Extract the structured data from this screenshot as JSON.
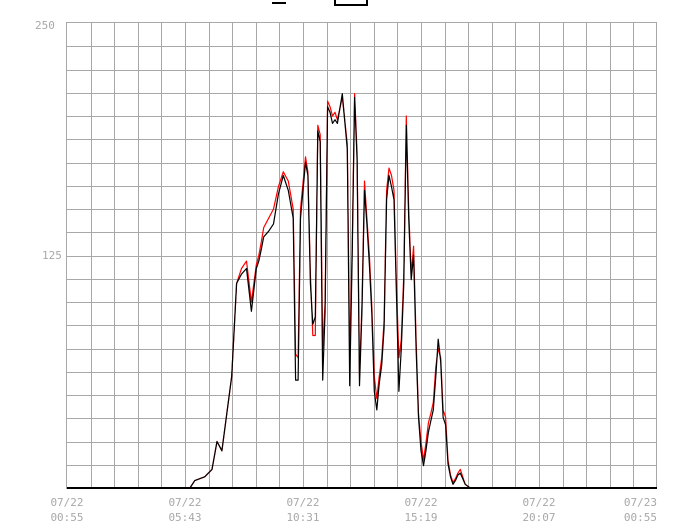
{
  "chart_data": {
    "type": "line",
    "x_ticks": [
      {
        "date": "07/22",
        "time": "00:55"
      },
      {
        "date": "07/22",
        "time": "05:43"
      },
      {
        "date": "07/22",
        "time": "10:31"
      },
      {
        "date": "07/22",
        "time": "15:19"
      },
      {
        "date": "07/22",
        "time": "20:07"
      },
      {
        "date": "07/23",
        "time": "00:55"
      }
    ],
    "y_ticks": [
      0,
      125,
      250
    ],
    "y_tick_labels_shown": [
      "125",
      "250"
    ],
    "ylim": [
      0,
      250
    ],
    "xlim_hours": [
      0,
      24
    ],
    "grid": true,
    "series": [
      {
        "color": "#ff0000",
        "x": [
          0,
          5,
          5.2,
          5.6,
          5.9,
          6.1,
          6.3,
          6.5,
          6.7,
          6.9,
          7.1,
          7.3,
          7.5,
          7.7,
          7.8,
          7.9,
          8,
          8.2,
          8.4,
          8.6,
          8.8,
          9,
          9.2,
          9.3,
          9.4,
          9.5,
          9.7,
          9.8,
          9.9,
          10,
          10.1,
          10.2,
          10.3,
          10.4,
          10.5,
          10.6,
          10.7,
          10.8,
          10.9,
          11,
          11.2,
          11.4,
          11.5,
          11.6,
          11.7,
          11.8,
          11.9,
          12,
          12.1,
          12.2,
          12.3,
          12.4,
          12.5,
          12.6,
          12.7,
          12.8,
          12.9,
          13,
          13.1,
          13.2,
          13.3,
          13.4,
          13.5,
          13.6,
          13.7,
          13.8,
          13.9,
          14,
          14.1,
          14.2,
          14.3,
          14.4,
          14.5,
          14.6,
          14.7,
          14.8,
          14.9,
          15,
          15.1,
          15.2,
          15.3,
          15.4,
          15.5,
          15.6,
          15.7,
          15.8,
          15.9,
          16,
          16.2,
          16.4,
          16.6,
          16.8,
          17,
          17.2,
          17.4,
          17.5,
          17.6,
          17.7,
          17.8,
          17.9,
          18,
          18.2,
          18.4,
          18.6,
          18.8,
          19,
          19.2,
          19.5,
          24
        ],
        "y": [
          0,
          0,
          4,
          6,
          10,
          25,
          20,
          40,
          60,
          110,
          118,
          122,
          100,
          120,
          125,
          132,
          140,
          145,
          150,
          162,
          170,
          165,
          150,
          72,
          70,
          150,
          178,
          170,
          115,
          82,
          82,
          195,
          190,
          75,
          100,
          208,
          205,
          200,
          202,
          198,
          210,
          185,
          70,
          130,
          212,
          180,
          60,
          100,
          165,
          145,
          125,
          98,
          60,
          48,
          60,
          70,
          90,
          160,
          172,
          168,
          160,
          110,
          70,
          80,
          115,
          200,
          150,
          115,
          130,
          80,
          40,
          25,
          15,
          24,
          35,
          40,
          46,
          65,
          75,
          70,
          42,
          38,
          15,
          7,
          3,
          5,
          8,
          10,
          2,
          0,
          0,
          0,
          0,
          0,
          0,
          0,
          0,
          0,
          0,
          0,
          0,
          0,
          0,
          0,
          0,
          0,
          0,
          0,
          0
        ]
      },
      {
        "color": "#000000",
        "x": [
          0,
          5,
          5.2,
          5.6,
          5.9,
          6.1,
          6.3,
          6.5,
          6.7,
          6.9,
          7.1,
          7.3,
          7.5,
          7.7,
          7.8,
          7.9,
          8,
          8.2,
          8.4,
          8.6,
          8.8,
          9,
          9.2,
          9.3,
          9.4,
          9.5,
          9.7,
          9.8,
          9.9,
          10,
          10.1,
          10.2,
          10.3,
          10.4,
          10.5,
          10.6,
          10.7,
          10.8,
          10.9,
          11,
          11.2,
          11.4,
          11.5,
          11.6,
          11.7,
          11.8,
          11.9,
          12,
          12.1,
          12.2,
          12.3,
          12.4,
          12.5,
          12.6,
          12.7,
          12.8,
          12.9,
          13,
          13.1,
          13.2,
          13.3,
          13.4,
          13.5,
          13.6,
          13.7,
          13.8,
          13.9,
          14,
          14.1,
          14.2,
          14.3,
          14.4,
          14.5,
          14.6,
          14.7,
          14.8,
          14.9,
          15,
          15.1,
          15.2,
          15.3,
          15.4,
          15.5,
          15.6,
          15.7,
          15.8,
          15.9,
          16,
          16.2,
          16.4,
          16.6,
          16.8,
          17,
          17.2,
          17.4,
          17.5,
          17.6,
          17.7,
          17.8,
          17.9,
          18,
          18.2,
          18.4,
          18.6,
          18.8,
          19,
          19.2,
          19.5,
          24
        ],
        "y": [
          0,
          0,
          4,
          6,
          10,
          25,
          20,
          40,
          60,
          110,
          115,
          118,
          95,
          118,
          122,
          128,
          135,
          138,
          142,
          158,
          168,
          160,
          145,
          58,
          58,
          145,
          175,
          168,
          110,
          88,
          92,
          192,
          186,
          58,
          95,
          205,
          202,
          196,
          198,
          196,
          212,
          182,
          55,
          125,
          210,
          176,
          55,
          96,
          160,
          142,
          120,
          94,
          52,
          42,
          56,
          66,
          86,
          155,
          168,
          162,
          155,
          105,
          52,
          75,
          110,
          195,
          145,
          112,
          125,
          75,
          38,
          20,
          12,
          20,
          30,
          36,
          42,
          60,
          80,
          68,
          38,
          34,
          13,
          6,
          2,
          4,
          7,
          8,
          2,
          0,
          0,
          0,
          0,
          0,
          0,
          0,
          0,
          0,
          0,
          0,
          0,
          0,
          0,
          0,
          0,
          0,
          0,
          0,
          0
        ]
      }
    ]
  }
}
